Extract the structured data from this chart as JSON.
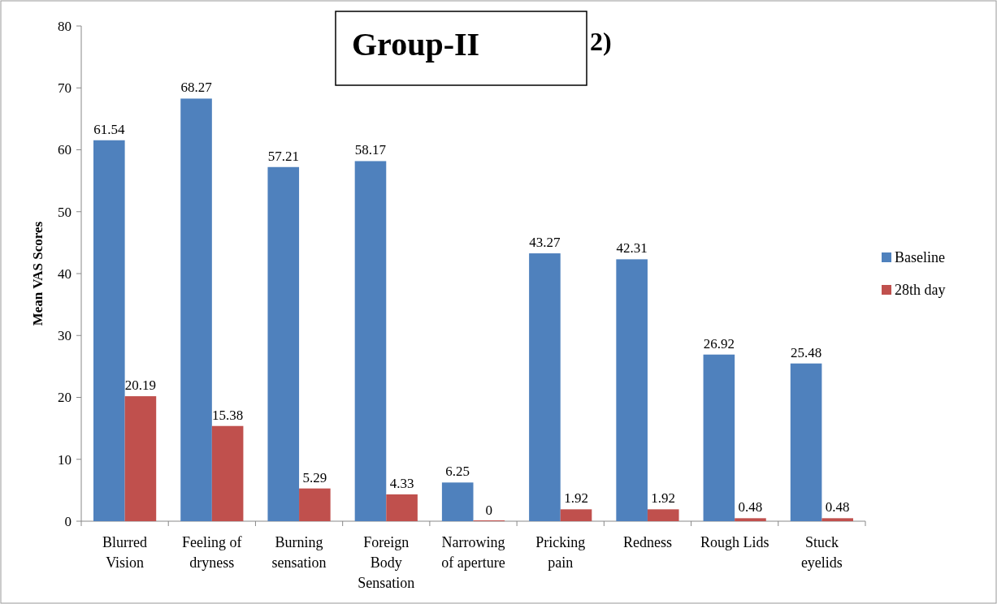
{
  "chart_data": {
    "type": "bar",
    "title": "Group-II",
    "annotations": [
      "2)"
    ],
    "ylabel": "Mean VAS Scores",
    "categories": [
      "Blurred Vision",
      "Feeling of dryness",
      "Burning sensation",
      "Foreign Body Sensation",
      "Narrowing of aperture",
      "Pricking pain",
      "Redness",
      "Rough Lids",
      "Stuck eyelids"
    ],
    "series": [
      {
        "name": "Baseline",
        "color": "#4f81bd",
        "values": [
          61.54,
          68.27,
          57.21,
          58.17,
          6.25,
          43.27,
          42.31,
          26.92,
          25.48
        ]
      },
      {
        "name": "28th day",
        "color": "#c0504d",
        "values": [
          20.19,
          15.38,
          5.29,
          4.33,
          0,
          1.92,
          1.92,
          0.48,
          0.48
        ]
      }
    ],
    "ylim": [
      0,
      80
    ],
    "yticks": [
      0,
      10,
      20,
      30,
      40,
      50,
      60,
      70,
      80
    ],
    "data_labels": true,
    "legend": "right"
  }
}
